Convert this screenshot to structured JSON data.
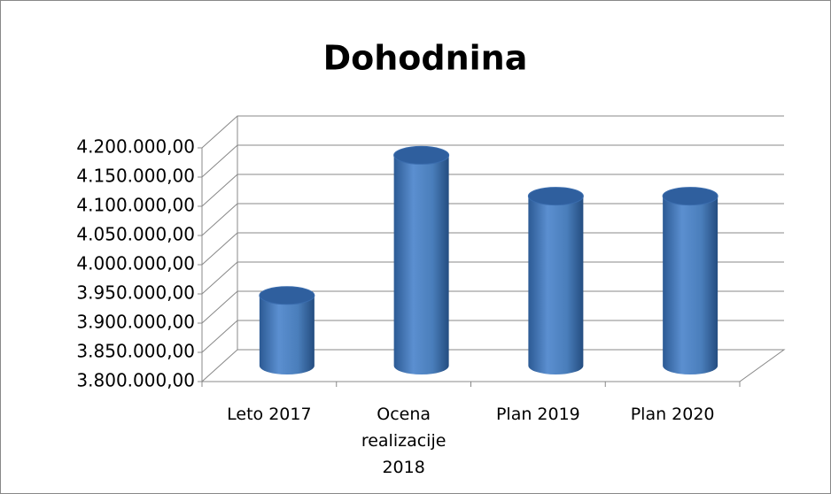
{
  "chart_data": {
    "type": "bar3d",
    "title": "Dohodnina",
    "categories": [
      "Leto 2017",
      "Ocena realizacije 2018",
      "Plan 2019",
      "Plan 2020"
    ],
    "values": [
      3920000,
      4160000,
      4090000,
      4090000
    ],
    "color": "#4a7ebb",
    "ylim": [
      3800000,
      4200000
    ],
    "yticks": [
      {
        "value": 3800000,
        "label": "3.800.000,00"
      },
      {
        "value": 3850000,
        "label": "3.850.000,00"
      },
      {
        "value": 3900000,
        "label": "3.900.000,00"
      },
      {
        "value": 3950000,
        "label": "3.950.000,00"
      },
      {
        "value": 4000000,
        "label": "4.000.000,00"
      },
      {
        "value": 4050000,
        "label": "4.050.000,00"
      },
      {
        "value": 4100000,
        "label": "4.100.000,00"
      },
      {
        "value": 4150000,
        "label": "4.150.000,00"
      },
      {
        "value": 4200000,
        "label": "4.200.000,00"
      }
    ],
    "grid": true
  }
}
